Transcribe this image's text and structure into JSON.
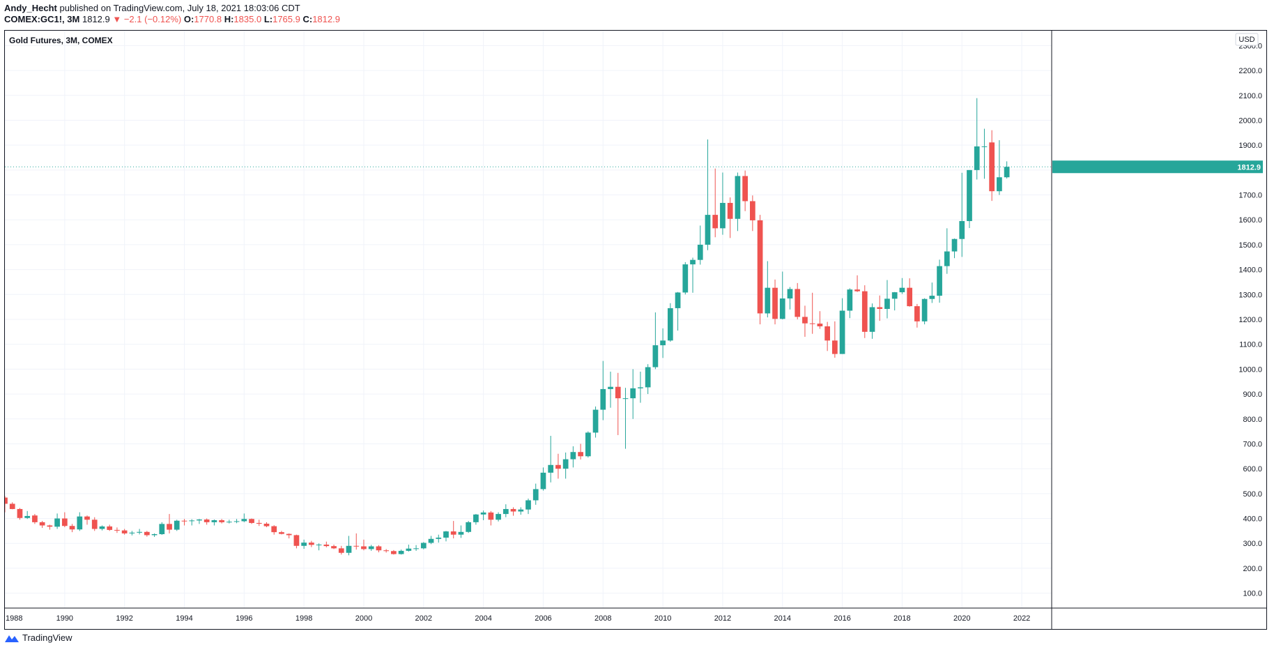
{
  "header": {
    "publisher": "Andy_Hecht",
    "published_text": "published on TradingView.com, July 18, 2021 18:03:06 CDT",
    "symbol": "COMEX:GC1!, 3M",
    "last": "1812.9",
    "change": "▼ −2.1 (−0.12%)",
    "o_label": "O:",
    "o_val": "1770.8",
    "h_label": "H:",
    "h_val": "1835.0",
    "l_label": "L:",
    "l_val": "1765.9",
    "c_label": "C:",
    "c_val": "1812.9"
  },
  "footer": {
    "brand": "TradingView"
  },
  "colors": {
    "up": "#26a69a",
    "down": "#ef5350",
    "grid": "#f0f3fa",
    "axis_text": "#131722",
    "price_line": "#26a69a"
  },
  "chart_data": {
    "type": "candlestick",
    "title": "Gold Futures, 3M, COMEX",
    "currency": "USD",
    "last_price": 1812.9,
    "last_price_label": "1812.9",
    "ylim": [
      40,
      2360
    ],
    "xlim": [
      1988.0,
      2023.0
    ],
    "y_ticks": [
      "100.0",
      "200.0",
      "300.0",
      "400.0",
      "500.0",
      "600.0",
      "700.0",
      "800.0",
      "900.0",
      "1000.0",
      "1100.0",
      "1200.0",
      "1300.0",
      "1400.0",
      "1500.0",
      "1600.0",
      "1700.0",
      "1800.0",
      "1900.0",
      "2000.0",
      "2100.0",
      "2200.0",
      "2300.0"
    ],
    "x_ticks": [
      "1988",
      "1990",
      "1992",
      "1994",
      "1996",
      "1998",
      "2000",
      "2002",
      "2004",
      "2006",
      "2008",
      "2010",
      "2012",
      "2014",
      "2016",
      "2018",
      "2020",
      "2022"
    ],
    "candles": [
      {
        "t": 1988.0,
        "o": 484,
        "h": 490,
        "l": 425,
        "c": 459
      },
      {
        "t": 1988.25,
        "o": 459,
        "h": 465,
        "l": 437,
        "c": 438
      },
      {
        "t": 1988.5,
        "o": 438,
        "h": 442,
        "l": 395,
        "c": 402
      },
      {
        "t": 1988.75,
        "o": 402,
        "h": 430,
        "l": 398,
        "c": 410
      },
      {
        "t": 1989.0,
        "o": 412,
        "h": 418,
        "l": 378,
        "c": 385
      },
      {
        "t": 1989.25,
        "o": 385,
        "h": 390,
        "l": 362,
        "c": 372
      },
      {
        "t": 1989.5,
        "o": 372,
        "h": 375,
        "l": 355,
        "c": 367
      },
      {
        "t": 1989.75,
        "o": 367,
        "h": 420,
        "l": 358,
        "c": 400
      },
      {
        "t": 1990.0,
        "o": 400,
        "h": 425,
        "l": 365,
        "c": 370
      },
      {
        "t": 1990.25,
        "o": 370,
        "h": 378,
        "l": 345,
        "c": 356
      },
      {
        "t": 1990.5,
        "o": 356,
        "h": 425,
        "l": 350,
        "c": 408
      },
      {
        "t": 1990.75,
        "o": 408,
        "h": 412,
        "l": 375,
        "c": 395
      },
      {
        "t": 1991.0,
        "o": 395,
        "h": 405,
        "l": 350,
        "c": 358
      },
      {
        "t": 1991.25,
        "o": 358,
        "h": 372,
        "l": 352,
        "c": 368
      },
      {
        "t": 1991.5,
        "o": 368,
        "h": 375,
        "l": 350,
        "c": 354
      },
      {
        "t": 1991.75,
        "o": 354,
        "h": 364,
        "l": 342,
        "c": 352
      },
      {
        "t": 1992.0,
        "o": 352,
        "h": 358,
        "l": 335,
        "c": 340
      },
      {
        "t": 1992.25,
        "o": 340,
        "h": 350,
        "l": 332,
        "c": 343
      },
      {
        "t": 1992.5,
        "o": 343,
        "h": 358,
        "l": 336,
        "c": 346
      },
      {
        "t": 1992.75,
        "o": 346,
        "h": 350,
        "l": 327,
        "c": 333
      },
      {
        "t": 1993.0,
        "o": 333,
        "h": 340,
        "l": 326,
        "c": 337
      },
      {
        "t": 1993.25,
        "o": 337,
        "h": 385,
        "l": 334,
        "c": 378
      },
      {
        "t": 1993.5,
        "o": 378,
        "h": 418,
        "l": 340,
        "c": 355
      },
      {
        "t": 1993.75,
        "o": 355,
        "h": 395,
        "l": 350,
        "c": 391
      },
      {
        "t": 1994.0,
        "o": 391,
        "h": 398,
        "l": 372,
        "c": 390
      },
      {
        "t": 1994.25,
        "o": 390,
        "h": 397,
        "l": 372,
        "c": 392
      },
      {
        "t": 1994.5,
        "o": 392,
        "h": 398,
        "l": 378,
        "c": 396
      },
      {
        "t": 1994.75,
        "o": 396,
        "h": 400,
        "l": 375,
        "c": 385
      },
      {
        "t": 1995.0,
        "o": 385,
        "h": 396,
        "l": 372,
        "c": 393
      },
      {
        "t": 1995.25,
        "o": 393,
        "h": 398,
        "l": 380,
        "c": 385
      },
      {
        "t": 1995.5,
        "o": 385,
        "h": 395,
        "l": 380,
        "c": 387
      },
      {
        "t": 1995.75,
        "o": 387,
        "h": 398,
        "l": 381,
        "c": 389
      },
      {
        "t": 1996.0,
        "o": 389,
        "h": 420,
        "l": 385,
        "c": 398
      },
      {
        "t": 1996.25,
        "o": 398,
        "h": 400,
        "l": 378,
        "c": 382
      },
      {
        "t": 1996.5,
        "o": 382,
        "h": 395,
        "l": 370,
        "c": 379
      },
      {
        "t": 1996.75,
        "o": 379,
        "h": 385,
        "l": 365,
        "c": 369
      },
      {
        "t": 1997.0,
        "o": 369,
        "h": 373,
        "l": 335,
        "c": 345
      },
      {
        "t": 1997.25,
        "o": 345,
        "h": 350,
        "l": 336,
        "c": 338
      },
      {
        "t": 1997.5,
        "o": 338,
        "h": 340,
        "l": 320,
        "c": 333
      },
      {
        "t": 1997.75,
        "o": 333,
        "h": 335,
        "l": 280,
        "c": 290
      },
      {
        "t": 1998.0,
        "o": 290,
        "h": 315,
        "l": 278,
        "c": 303
      },
      {
        "t": 1998.25,
        "o": 303,
        "h": 310,
        "l": 285,
        "c": 294
      },
      {
        "t": 1998.5,
        "o": 294,
        "h": 300,
        "l": 272,
        "c": 295
      },
      {
        "t": 1998.75,
        "o": 295,
        "h": 307,
        "l": 284,
        "c": 289
      },
      {
        "t": 1999.0,
        "o": 289,
        "h": 295,
        "l": 277,
        "c": 280
      },
      {
        "t": 1999.25,
        "o": 280,
        "h": 290,
        "l": 255,
        "c": 262
      },
      {
        "t": 1999.5,
        "o": 262,
        "h": 330,
        "l": 252,
        "c": 290
      },
      {
        "t": 1999.75,
        "o": 290,
        "h": 340,
        "l": 275,
        "c": 288
      },
      {
        "t": 2000.0,
        "o": 288,
        "h": 315,
        "l": 272,
        "c": 277
      },
      {
        "t": 2000.25,
        "o": 277,
        "h": 294,
        "l": 270,
        "c": 288
      },
      {
        "t": 2000.5,
        "o": 288,
        "h": 293,
        "l": 264,
        "c": 272
      },
      {
        "t": 2000.75,
        "o": 272,
        "h": 277,
        "l": 263,
        "c": 269
      },
      {
        "t": 2001.0,
        "o": 269,
        "h": 273,
        "l": 255,
        "c": 257
      },
      {
        "t": 2001.25,
        "o": 257,
        "h": 275,
        "l": 255,
        "c": 270
      },
      {
        "t": 2001.5,
        "o": 270,
        "h": 295,
        "l": 267,
        "c": 279
      },
      {
        "t": 2001.75,
        "o": 279,
        "h": 293,
        "l": 270,
        "c": 280
      },
      {
        "t": 2002.0,
        "o": 280,
        "h": 305,
        "l": 276,
        "c": 302
      },
      {
        "t": 2002.25,
        "o": 302,
        "h": 330,
        "l": 297,
        "c": 318
      },
      {
        "t": 2002.5,
        "o": 318,
        "h": 335,
        "l": 303,
        "c": 323
      },
      {
        "t": 2002.75,
        "o": 323,
        "h": 350,
        "l": 308,
        "c": 348
      },
      {
        "t": 2003.0,
        "o": 348,
        "h": 390,
        "l": 320,
        "c": 335
      },
      {
        "t": 2003.25,
        "o": 335,
        "h": 372,
        "l": 322,
        "c": 346
      },
      {
        "t": 2003.5,
        "o": 346,
        "h": 390,
        "l": 342,
        "c": 385
      },
      {
        "t": 2003.75,
        "o": 385,
        "h": 418,
        "l": 375,
        "c": 416
      },
      {
        "t": 2004.0,
        "o": 416,
        "h": 432,
        "l": 393,
        "c": 424
      },
      {
        "t": 2004.25,
        "o": 424,
        "h": 430,
        "l": 372,
        "c": 395
      },
      {
        "t": 2004.5,
        "o": 395,
        "h": 425,
        "l": 388,
        "c": 418
      },
      {
        "t": 2004.75,
        "o": 418,
        "h": 457,
        "l": 405,
        "c": 438
      },
      {
        "t": 2005.0,
        "o": 438,
        "h": 445,
        "l": 411,
        "c": 428
      },
      {
        "t": 2005.25,
        "o": 428,
        "h": 445,
        "l": 415,
        "c": 436
      },
      {
        "t": 2005.5,
        "o": 436,
        "h": 480,
        "l": 418,
        "c": 473
      },
      {
        "t": 2005.75,
        "o": 473,
        "h": 540,
        "l": 455,
        "c": 518
      },
      {
        "t": 2006.0,
        "o": 518,
        "h": 605,
        "l": 512,
        "c": 584
      },
      {
        "t": 2006.25,
        "o": 584,
        "h": 732,
        "l": 545,
        "c": 615
      },
      {
        "t": 2006.5,
        "o": 615,
        "h": 660,
        "l": 560,
        "c": 600
      },
      {
        "t": 2006.75,
        "o": 600,
        "h": 665,
        "l": 560,
        "c": 638
      },
      {
        "t": 2007.0,
        "o": 638,
        "h": 690,
        "l": 605,
        "c": 667
      },
      {
        "t": 2007.25,
        "o": 667,
        "h": 700,
        "l": 637,
        "c": 650
      },
      {
        "t": 2007.5,
        "o": 650,
        "h": 750,
        "l": 645,
        "c": 745
      },
      {
        "t": 2007.75,
        "o": 745,
        "h": 850,
        "l": 725,
        "c": 837
      },
      {
        "t": 2008.0,
        "o": 837,
        "h": 1033,
        "l": 795,
        "c": 920
      },
      {
        "t": 2008.25,
        "o": 920,
        "h": 990,
        "l": 845,
        "c": 929
      },
      {
        "t": 2008.5,
        "o": 929,
        "h": 985,
        "l": 735,
        "c": 883
      },
      {
        "t": 2008.75,
        "o": 883,
        "h": 925,
        "l": 680,
        "c": 883
      },
      {
        "t": 2009.0,
        "o": 883,
        "h": 1000,
        "l": 800,
        "c": 923
      },
      {
        "t": 2009.25,
        "o": 923,
        "h": 990,
        "l": 865,
        "c": 927
      },
      {
        "t": 2009.5,
        "o": 927,
        "h": 1020,
        "l": 900,
        "c": 1008
      },
      {
        "t": 2009.75,
        "o": 1008,
        "h": 1228,
        "l": 1000,
        "c": 1096
      },
      {
        "t": 2010.0,
        "o": 1096,
        "h": 1164,
        "l": 1045,
        "c": 1115
      },
      {
        "t": 2010.25,
        "o": 1115,
        "h": 1265,
        "l": 1110,
        "c": 1245
      },
      {
        "t": 2010.5,
        "o": 1245,
        "h": 1310,
        "l": 1155,
        "c": 1308
      },
      {
        "t": 2010.75,
        "o": 1308,
        "h": 1430,
        "l": 1300,
        "c": 1421
      },
      {
        "t": 2011.0,
        "o": 1421,
        "h": 1448,
        "l": 1307,
        "c": 1439
      },
      {
        "t": 2011.25,
        "o": 1439,
        "h": 1577,
        "l": 1420,
        "c": 1500
      },
      {
        "t": 2011.5,
        "o": 1500,
        "h": 1923,
        "l": 1478,
        "c": 1620
      },
      {
        "t": 2011.75,
        "o": 1620,
        "h": 1806,
        "l": 1530,
        "c": 1566
      },
      {
        "t": 2012.0,
        "o": 1566,
        "h": 1790,
        "l": 1540,
        "c": 1668
      },
      {
        "t": 2012.25,
        "o": 1668,
        "h": 1690,
        "l": 1527,
        "c": 1604
      },
      {
        "t": 2012.5,
        "o": 1604,
        "h": 1790,
        "l": 1555,
        "c": 1776
      },
      {
        "t": 2012.75,
        "o": 1776,
        "h": 1798,
        "l": 1635,
        "c": 1675
      },
      {
        "t": 2013.0,
        "o": 1675,
        "h": 1698,
        "l": 1555,
        "c": 1598
      },
      {
        "t": 2013.25,
        "o": 1598,
        "h": 1620,
        "l": 1180,
        "c": 1224
      },
      {
        "t": 2013.5,
        "o": 1224,
        "h": 1434,
        "l": 1208,
        "c": 1327
      },
      {
        "t": 2013.75,
        "o": 1327,
        "h": 1360,
        "l": 1180,
        "c": 1202
      },
      {
        "t": 2014.0,
        "o": 1202,
        "h": 1392,
        "l": 1200,
        "c": 1284
      },
      {
        "t": 2014.25,
        "o": 1284,
        "h": 1330,
        "l": 1240,
        "c": 1322
      },
      {
        "t": 2014.5,
        "o": 1322,
        "h": 1346,
        "l": 1200,
        "c": 1210
      },
      {
        "t": 2014.75,
        "o": 1210,
        "h": 1255,
        "l": 1130,
        "c": 1184
      },
      {
        "t": 2015.0,
        "o": 1184,
        "h": 1307,
        "l": 1142,
        "c": 1183
      },
      {
        "t": 2015.25,
        "o": 1183,
        "h": 1233,
        "l": 1162,
        "c": 1172
      },
      {
        "t": 2015.5,
        "o": 1172,
        "h": 1190,
        "l": 1073,
        "c": 1115
      },
      {
        "t": 2015.75,
        "o": 1115,
        "h": 1192,
        "l": 1046,
        "c": 1061
      },
      {
        "t": 2016.0,
        "o": 1061,
        "h": 1285,
        "l": 1061,
        "c": 1235
      },
      {
        "t": 2016.25,
        "o": 1235,
        "h": 1325,
        "l": 1205,
        "c": 1320
      },
      {
        "t": 2016.5,
        "o": 1320,
        "h": 1377,
        "l": 1310,
        "c": 1313
      },
      {
        "t": 2016.75,
        "o": 1313,
        "h": 1337,
        "l": 1125,
        "c": 1150
      },
      {
        "t": 2017.0,
        "o": 1150,
        "h": 1264,
        "l": 1122,
        "c": 1249
      },
      {
        "t": 2017.25,
        "o": 1249,
        "h": 1296,
        "l": 1194,
        "c": 1242
      },
      {
        "t": 2017.5,
        "o": 1242,
        "h": 1358,
        "l": 1204,
        "c": 1283
      },
      {
        "t": 2017.75,
        "o": 1283,
        "h": 1310,
        "l": 1236,
        "c": 1309
      },
      {
        "t": 2018.0,
        "o": 1309,
        "h": 1366,
        "l": 1302,
        "c": 1327
      },
      {
        "t": 2018.25,
        "o": 1327,
        "h": 1365,
        "l": 1251,
        "c": 1253
      },
      {
        "t": 2018.5,
        "o": 1253,
        "h": 1262,
        "l": 1167,
        "c": 1192
      },
      {
        "t": 2018.75,
        "o": 1192,
        "h": 1285,
        "l": 1180,
        "c": 1282
      },
      {
        "t": 2019.0,
        "o": 1282,
        "h": 1348,
        "l": 1266,
        "c": 1295
      },
      {
        "t": 2019.25,
        "o": 1295,
        "h": 1440,
        "l": 1267,
        "c": 1414
      },
      {
        "t": 2019.5,
        "o": 1414,
        "h": 1566,
        "l": 1383,
        "c": 1473
      },
      {
        "t": 2019.75,
        "o": 1473,
        "h": 1525,
        "l": 1446,
        "c": 1523
      },
      {
        "t": 2020.0,
        "o": 1523,
        "h": 1789,
        "l": 1451,
        "c": 1595
      },
      {
        "t": 2020.25,
        "o": 1595,
        "h": 1800,
        "l": 1567,
        "c": 1800
      },
      {
        "t": 2020.5,
        "o": 1800,
        "h": 2089,
        "l": 1762,
        "c": 1895
      },
      {
        "t": 2020.75,
        "o": 1895,
        "h": 1966,
        "l": 1765,
        "c": 1895
      },
      {
        "t": 2021.0,
        "o": 1911,
        "h": 1960,
        "l": 1676,
        "c": 1715
      },
      {
        "t": 2021.25,
        "o": 1715,
        "h": 1920,
        "l": 1700,
        "c": 1771
      },
      {
        "t": 2021.5,
        "o": 1771,
        "h": 1835,
        "l": 1766,
        "c": 1813
      }
    ]
  }
}
